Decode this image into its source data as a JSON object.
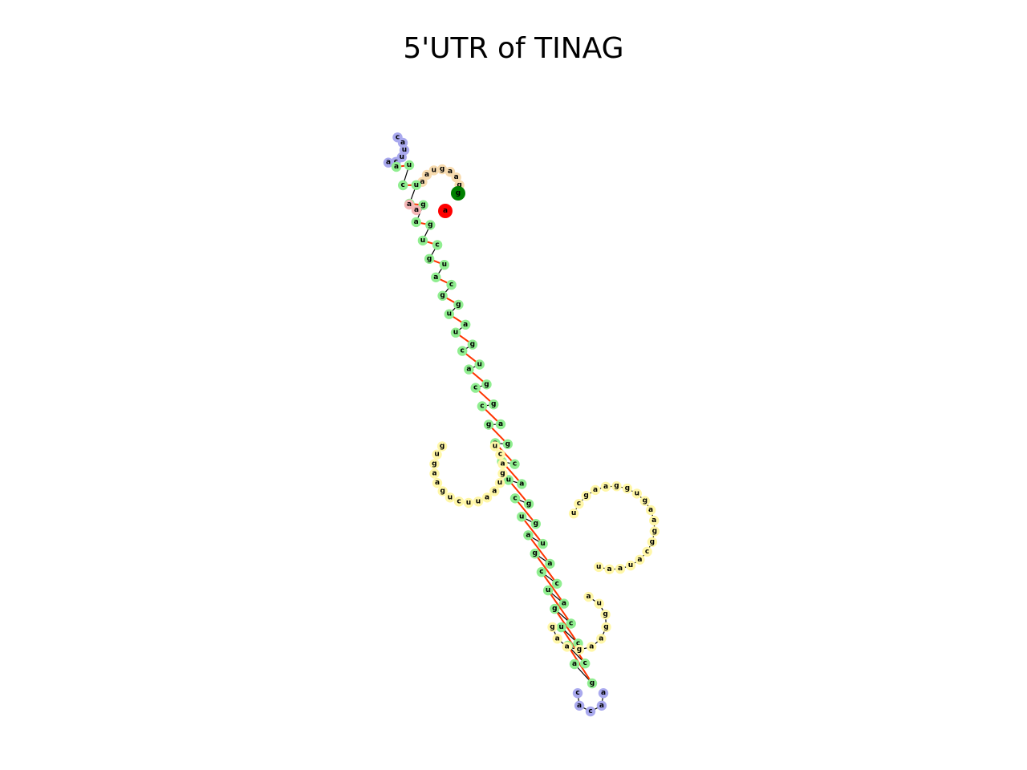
{
  "title": "5'UTR of TINAG",
  "colors": {
    "stem": "#90ee90",
    "hairpin_loop": "#a9a9ee",
    "interior_loop": "#fff7a8",
    "dangling_5p": "#f4b6b6",
    "dangling_3p": "#f8dcb0",
    "base_pair": "#ff3300",
    "backbone": "#000000",
    "start_marker": "#008000",
    "end_marker": "#ff0000"
  },
  "markers": {
    "five_prime_label": "g",
    "three_prime_label": "a"
  },
  "segments": [
    {
      "name": "five-prime-tail",
      "type": "dangling_3p",
      "seq": [
        "g",
        "a",
        "a",
        "g",
        "u",
        "a",
        "a"
      ]
    },
    {
      "name": "terminal-hairpin-loop",
      "type": "hairpin_loop",
      "seq": [
        "c",
        "a",
        "u",
        "u",
        "c",
        "a"
      ]
    },
    {
      "name": "helix-left-strand",
      "type": "stem",
      "seq": [
        "a",
        "u",
        "c",
        "u",
        "g",
        "g",
        "a",
        "g",
        "u",
        "c",
        "g",
        "u",
        "a",
        "c",
        "g",
        "g",
        "u",
        "a",
        "u",
        "g",
        "c",
        "u",
        "a",
        "g",
        "c",
        "g",
        "c",
        "a",
        "g",
        "g",
        "a",
        "c",
        "g",
        "a",
        "u",
        "g",
        "c",
        "g",
        "u",
        "u",
        "a",
        "a",
        "g",
        "c",
        "c",
        "a",
        "u",
        "c",
        "g",
        "c",
        "u",
        "c",
        "g",
        "g",
        "a"
      ]
    },
    {
      "name": "left-interior-loop",
      "type": "interior_loop",
      "seq": [
        "g",
        "u",
        "g",
        "a",
        "a",
        "g",
        "u",
        "c",
        "u",
        "u",
        "a",
        "a",
        "u",
        "g",
        "a",
        "c",
        "u"
      ]
    },
    {
      "name": "right-interior-loop",
      "type": "interior_loop",
      "seq": [
        "u",
        "c",
        "g",
        "a",
        "a",
        "g",
        "g",
        "u",
        "g",
        "a",
        "a",
        "g",
        "g",
        "c",
        "a",
        "u",
        "a",
        "a",
        "u"
      ]
    },
    {
      "name": "lower-interior-loop",
      "type": "interior_loop",
      "seq": [
        "a",
        "u",
        "g",
        "g",
        "a",
        "a",
        "g",
        "a",
        "a",
        "g"
      ]
    },
    {
      "name": "bottom-hairpin-loop",
      "type": "hairpin_loop",
      "seq": [
        "a",
        "a",
        "c",
        "a",
        "c"
      ]
    },
    {
      "name": "three-prime-tail",
      "type": "dangling_5p",
      "seq": [
        "a",
        "a"
      ]
    }
  ]
}
